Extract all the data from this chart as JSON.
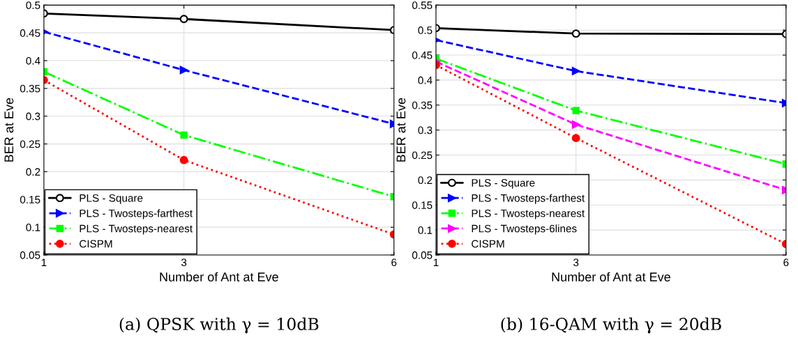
{
  "chart_data": [
    {
      "type": "line",
      "xlabel": "Number of Ant at Eve",
      "ylabel": "BER at Eve",
      "x": [
        1,
        3,
        6
      ],
      "xlim": [
        1,
        6
      ],
      "xticks": [
        1,
        3,
        6
      ],
      "ylim": [
        0.05,
        0.5
      ],
      "yticks": [
        0.05,
        0.1,
        0.15,
        0.2,
        0.25,
        0.3,
        0.35,
        0.4,
        0.45,
        0.5
      ],
      "grid": true,
      "legend": "bottom left",
      "annotations": [
        "(a) QPSK with γ = 10dB"
      ],
      "series": [
        {
          "name": "PLS - Square",
          "color": "#000000",
          "values": [
            0.485,
            0.475,
            0.455
          ],
          "marker": "circle",
          "line_style": "solid"
        },
        {
          "name": "PLS - Twosteps-farthest",
          "color": "#0000ff",
          "values": [
            0.452,
            0.383,
            0.286
          ],
          "marker": "triangle",
          "line_style": "dashed"
        },
        {
          "name": "PLS - Twosteps-nearest",
          "color": "#00ff00",
          "values": [
            0.38,
            0.266,
            0.155
          ],
          "marker": "square",
          "line_style": "dashdot"
        },
        {
          "name": "CISPM",
          "color": "#ff0000",
          "values": [
            0.365,
            0.221,
            0.087
          ],
          "marker": "circle",
          "line_style": "dotted"
        }
      ]
    },
    {
      "type": "line",
      "xlabel": "Number of Ant at Eve",
      "ylabel": "BER at Eve",
      "x": [
        1,
        3,
        6
      ],
      "xlim": [
        1,
        6
      ],
      "xticks": [
        1,
        3,
        6
      ],
      "ylim": [
        0.05,
        0.55
      ],
      "yticks": [
        0.05,
        0.1,
        0.15,
        0.2,
        0.25,
        0.3,
        0.35,
        0.4,
        0.45,
        0.5,
        0.55
      ],
      "grid": true,
      "legend": "bottom left",
      "annotations": [
        "(b) 16-QAM with γ = 20dB"
      ],
      "series": [
        {
          "name": "PLS - Square",
          "color": "#000000",
          "values": [
            0.504,
            0.493,
            0.492
          ],
          "marker": "circle",
          "line_style": "solid"
        },
        {
          "name": "PLS - Twosteps-farthest",
          "color": "#0000ff",
          "values": [
            0.48,
            0.418,
            0.354
          ],
          "marker": "triangle",
          "line_style": "dashed"
        },
        {
          "name": "PLS - Twosteps-nearest",
          "color": "#00ff00",
          "values": [
            0.443,
            0.339,
            0.232
          ],
          "marker": "square",
          "line_style": "dashdot"
        },
        {
          "name": "PLS - Twosteps-6lines",
          "color": "#ff00ff",
          "values": [
            0.437,
            0.311,
            0.18
          ],
          "marker": "triangle",
          "line_style": "dashed"
        },
        {
          "name": "CISPM",
          "color": "#ff0000",
          "values": [
            0.43,
            0.284,
            0.072
          ],
          "marker": "circle",
          "line_style": "dotted"
        }
      ]
    }
  ]
}
